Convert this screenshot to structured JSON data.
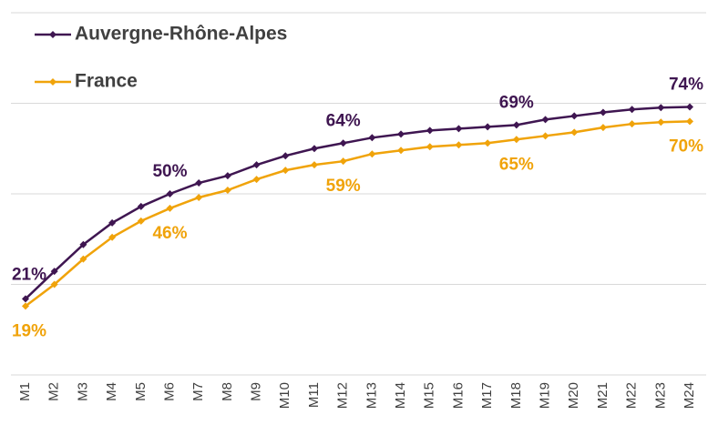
{
  "chart_data": {
    "type": "line",
    "categories": [
      "M1",
      "M2",
      "M3",
      "M4",
      "M5",
      "M6",
      "M7",
      "M8",
      "M9",
      "M10",
      "M11",
      "M12",
      "M13",
      "M14",
      "M15",
      "M16",
      "M17",
      "M18",
      "M19",
      "M20",
      "M21",
      "M22",
      "M23",
      "M24"
    ],
    "series": [
      {
        "name": "Auvergne-Rhône-Alpes",
        "color": "#3f1651",
        "values": [
          21,
          28.6,
          36,
          42,
          46.5,
          50,
          53,
          55,
          58,
          60.5,
          62.5,
          64,
          65.5,
          66.5,
          67.5,
          68,
          68.5,
          69,
          70.5,
          71.5,
          72.5,
          73.3,
          73.8,
          74
        ],
        "value_labels": [
          "21%",
          null,
          null,
          null,
          null,
          "50%",
          null,
          null,
          null,
          null,
          null,
          "64%",
          null,
          null,
          null,
          null,
          null,
          "69%",
          null,
          null,
          null,
          null,
          null,
          "74%"
        ]
      },
      {
        "name": "France",
        "color": "#f0a30a",
        "values": [
          19,
          25,
          32,
          38,
          42.5,
          46,
          49,
          51,
          54,
          56.5,
          58,
          59,
          61,
          62,
          63,
          63.5,
          64,
          65,
          66,
          67,
          68.3,
          69.3,
          69.8,
          70
        ],
        "value_labels": [
          "19%",
          null,
          null,
          null,
          null,
          "46%",
          null,
          null,
          null,
          null,
          null,
          "59%",
          null,
          null,
          null,
          null,
          null,
          "65%",
          null,
          null,
          null,
          null,
          null,
          "70%"
        ]
      }
    ],
    "ylim": [
      0,
      100
    ],
    "yticks": [
      0,
      25,
      50,
      75,
      100
    ],
    "grid": true,
    "legend": "top-left"
  }
}
